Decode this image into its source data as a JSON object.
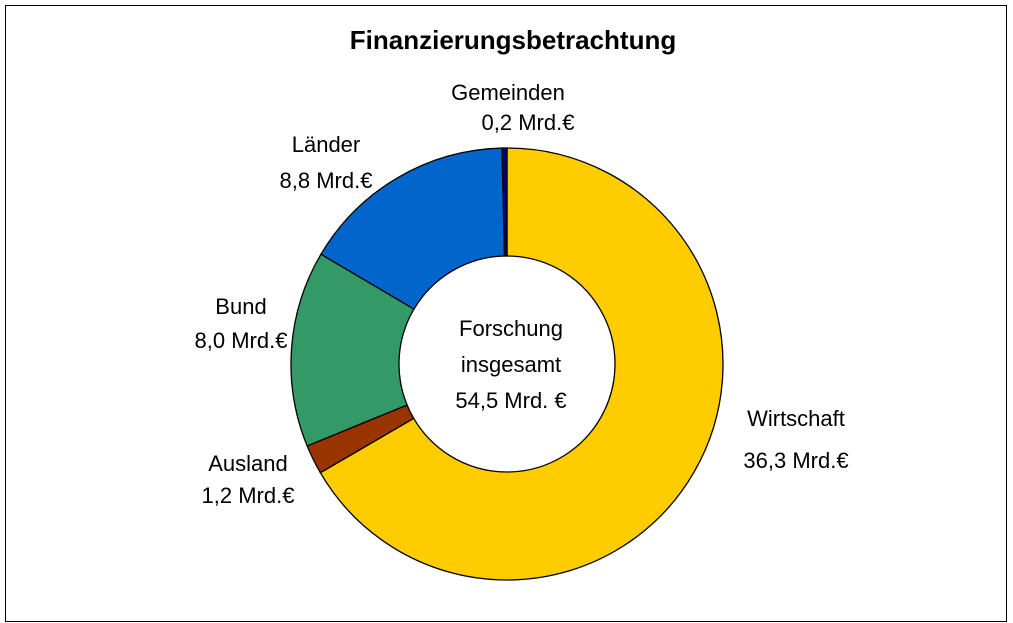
{
  "chart_data": {
    "type": "donut",
    "title": "Finanzierungsbetrachtung",
    "categories": [
      "Wirtschaft",
      "Ausland",
      "Bund",
      "Länder",
      "Gemeinden"
    ],
    "values": [
      36.3,
      1.2,
      8.0,
      8.8,
      0.2
    ],
    "value_labels": [
      "36,3 Mrd.€",
      "1,2 Mrd.€",
      "8,0 Mrd.€",
      "8,8 Mrd.€",
      "0,2 Mrd.€"
    ],
    "colors": [
      "#FFCC00",
      "#993300",
      "#339966",
      "#0066CC",
      "#000080"
    ],
    "center_label": [
      "Forschung",
      "insgesamt",
      "54,5 Mrd. €"
    ]
  }
}
